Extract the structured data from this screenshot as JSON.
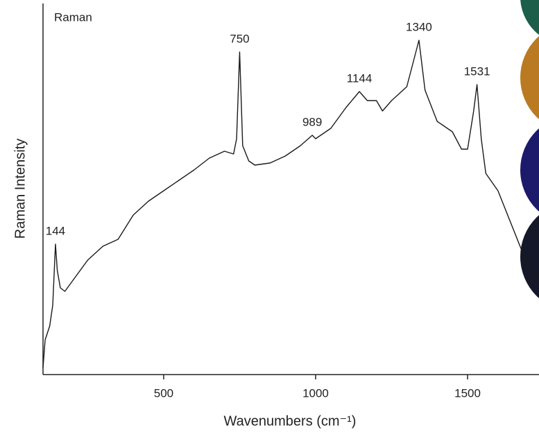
{
  "chart_data": {
    "type": "line",
    "title": "Raman",
    "x_label": "Wavenumbers (cm⁻¹)",
    "y_label": "Raman Intensity",
    "x": [
      103,
      110,
      125,
      135,
      144,
      150,
      160,
      175,
      200,
      250,
      300,
      350,
      400,
      450,
      500,
      550,
      600,
      650,
      700,
      730,
      740,
      750,
      760,
      780,
      800,
      850,
      900,
      950,
      989,
      1000,
      1050,
      1100,
      1144,
      1170,
      1200,
      1220,
      1250,
      1300,
      1340,
      1360,
      1400,
      1450,
      1480,
      1500,
      1520,
      1531,
      1545,
      1560,
      1600,
      1650,
      1700,
      1735
    ],
    "series": [
      {
        "name": "Raman",
        "color": "#1a1a1a",
        "values": [
          2,
          10,
          14,
          20,
          37.6,
          30,
          25,
          24,
          27,
          33,
          37,
          39,
          46,
          50,
          53,
          56,
          59,
          62.4,
          64.4,
          63.6,
          68,
          93,
          66,
          61.6,
          60.4,
          61,
          63,
          66,
          69,
          68,
          71,
          77,
          81.6,
          79,
          79,
          76,
          79,
          83,
          96.4,
          82,
          73,
          70,
          65,
          65,
          76,
          83.6,
          68,
          58,
          53,
          42,
          31,
          26
        ]
      }
    ],
    "peak_labels": [
      144,
      750,
      989,
      1144,
      1340,
      1531
    ],
    "xlim": [
      103,
      1735
    ],
    "xticks": [
      500,
      1000,
      1500
    ],
    "ylim": [
      0,
      100
    ]
  }
}
